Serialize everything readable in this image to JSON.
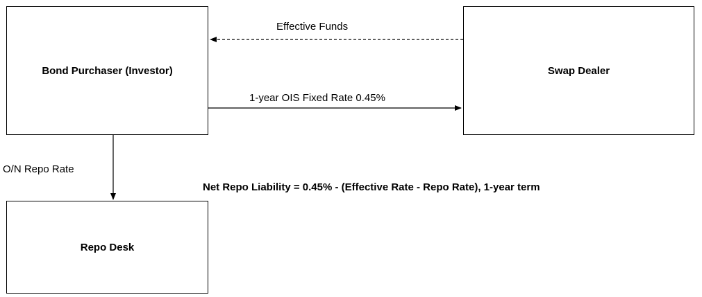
{
  "boxes": {
    "investor": "Bond Purchaser (Investor)",
    "dealer": "Swap Dealer",
    "repo_desk": "Repo Desk"
  },
  "flows": {
    "effective_funds": "Effective Funds",
    "ois_fixed": "1-year OIS Fixed Rate 0.45%",
    "on_repo": "O/N Repo Rate"
  },
  "note": "Net Repo Liability = 0.45% - (Effective Rate - Repo Rate), 1-year term"
}
